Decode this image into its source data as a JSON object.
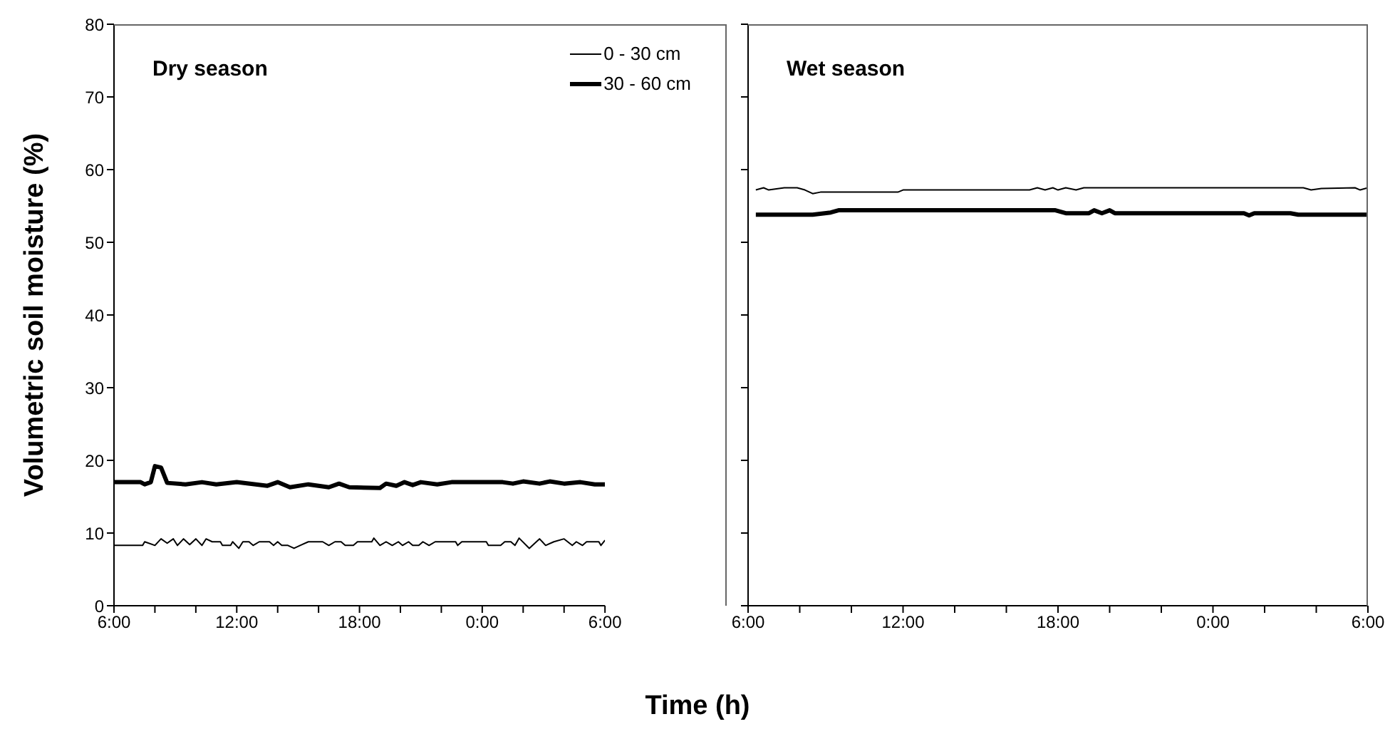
{
  "chart_data": [
    {
      "type": "line",
      "title": "Dry season",
      "ylabel": "Volumetric soil moisture (%)",
      "xlabel": "Time (h)",
      "xlim": [
        "2000-01-01T06:00",
        "2000-01-02T06:00"
      ],
      "xticks": [
        {
          "value": "2000-01-01T06:00",
          "label": "6:00"
        },
        {
          "value": "2000-01-01T08:00",
          "label": null
        },
        {
          "value": "2000-01-01T10:00",
          "label": null
        },
        {
          "value": "2000-01-01T12:00",
          "label": "12:00"
        },
        {
          "value": "2000-01-01T14:00",
          "label": null
        },
        {
          "value": "2000-01-01T16:00",
          "label": null
        },
        {
          "value": "2000-01-01T18:00",
          "label": "18:00"
        },
        {
          "value": "2000-01-01T20:00",
          "label": null
        },
        {
          "value": "2000-01-01T22:00",
          "label": null
        },
        {
          "value": "2000-01-02T00:00",
          "label": "0:00"
        },
        {
          "value": "2000-01-02T02:00",
          "label": null
        },
        {
          "value": "2000-01-02T04:00",
          "label": null
        },
        {
          "value": "2000-01-02T06:00",
          "label": "6:00"
        }
      ],
      "ylim": [
        0,
        80
      ],
      "yticks": [
        0,
        10,
        20,
        30,
        40,
        50,
        60,
        70,
        80
      ],
      "grid": false,
      "legend": "top right",
      "marker": "none",
      "line_style": "solid",
      "series": [
        {
          "name": "0 - 30 cm",
          "color": "#000000",
          "x": [
            "2000-01-01T06:00",
            "2000-01-01T07:24",
            "2000-01-01T07:30",
            "2000-01-01T08:00",
            "2000-01-01T08:18",
            "2000-01-01T08:36",
            "2000-01-01T08:54",
            "2000-01-01T09:06",
            "2000-01-01T09:24",
            "2000-01-01T09:42",
            "2000-01-01T10:00",
            "2000-01-01T10:18",
            "2000-01-01T10:30",
            "2000-01-01T10:48",
            "2000-01-01T11:12",
            "2000-01-01T11:18",
            "2000-01-01T11:42",
            "2000-01-01T11:48",
            "2000-01-01T12:06",
            "2000-01-01T12:18",
            "2000-01-01T12:36",
            "2000-01-01T12:48",
            "2000-01-01T13:06",
            "2000-01-01T13:36",
            "2000-01-01T13:48",
            "2000-01-01T14:00",
            "2000-01-01T14:12",
            "2000-01-01T14:30",
            "2000-01-01T14:48",
            "2000-01-01T15:06",
            "2000-01-01T15:30",
            "2000-01-01T16:12",
            "2000-01-01T16:30",
            "2000-01-01T16:48",
            "2000-01-01T17:06",
            "2000-01-01T17:18",
            "2000-01-01T17:42",
            "2000-01-01T17:54",
            "2000-01-01T18:36",
            "2000-01-01T18:42",
            "2000-01-01T19:00",
            "2000-01-01T19:18",
            "2000-01-01T19:36",
            "2000-01-01T19:54",
            "2000-01-01T20:06",
            "2000-01-01T20:24",
            "2000-01-01T20:36",
            "2000-01-01T20:54",
            "2000-01-01T21:06",
            "2000-01-01T21:24",
            "2000-01-01T21:42",
            "2000-01-01T22:42",
            "2000-01-01T22:48",
            "2000-01-01T23:00",
            "2000-01-02T00:12",
            "2000-01-02T00:18",
            "2000-01-02T00:54",
            "2000-01-02T01:06",
            "2000-01-02T01:24",
            "2000-01-02T01:36",
            "2000-01-02T01:48",
            "2000-01-02T02:18",
            "2000-01-02T02:48",
            "2000-01-02T03:06",
            "2000-01-02T03:30",
            "2000-01-02T04:00",
            "2000-01-02T04:24",
            "2000-01-02T04:36",
            "2000-01-02T04:54",
            "2000-01-02T05:06",
            "2000-01-02T05:42",
            "2000-01-02T05:48",
            "2000-01-02T06:00"
          ],
          "values": [
            8.3,
            8.3,
            8.8,
            8.3,
            9.2,
            8.6,
            9.2,
            8.3,
            9.2,
            8.4,
            9.2,
            8.3,
            9.2,
            8.8,
            8.8,
            8.3,
            8.3,
            8.8,
            7.9,
            8.8,
            8.8,
            8.3,
            8.8,
            8.8,
            8.3,
            8.8,
            8.3,
            8.3,
            7.9,
            8.3,
            8.8,
            8.8,
            8.3,
            8.8,
            8.8,
            8.3,
            8.3,
            8.8,
            8.8,
            9.3,
            8.3,
            8.8,
            8.3,
            8.8,
            8.3,
            8.8,
            8.3,
            8.3,
            8.8,
            8.3,
            8.8,
            8.8,
            8.3,
            8.8,
            8.8,
            8.3,
            8.3,
            8.8,
            8.8,
            8.3,
            9.3,
            7.9,
            9.2,
            8.3,
            8.8,
            9.2,
            8.3,
            8.8,
            8.3,
            8.8,
            8.8,
            8.3,
            9.0
          ]
        },
        {
          "name": "30 - 60 cm",
          "color": "#000000",
          "x": [
            "2000-01-01T06:00",
            "2000-01-01T07:18",
            "2000-01-01T07:30",
            "2000-01-01T07:48",
            "2000-01-01T08:00",
            "2000-01-01T08:18",
            "2000-01-01T08:36",
            "2000-01-01T09:30",
            "2000-01-01T10:18",
            "2000-01-01T11:00",
            "2000-01-01T12:00",
            "2000-01-01T13:30",
            "2000-01-01T14:00",
            "2000-01-01T14:36",
            "2000-01-01T15:30",
            "2000-01-01T16:30",
            "2000-01-01T17:00",
            "2000-01-01T17:30",
            "2000-01-01T19:00",
            "2000-01-01T19:18",
            "2000-01-01T19:48",
            "2000-01-01T20:12",
            "2000-01-01T20:36",
            "2000-01-01T21:00",
            "2000-01-01T21:48",
            "2000-01-01T22:30",
            "2000-01-02T01:00",
            "2000-01-02T01:30",
            "2000-01-02T02:00",
            "2000-01-02T02:48",
            "2000-01-02T03:18",
            "2000-01-02T04:00",
            "2000-01-02T04:48",
            "2000-01-02T05:30",
            "2000-01-02T06:00"
          ],
          "values": [
            17.0,
            17.0,
            16.7,
            17.0,
            19.2,
            19.0,
            16.9,
            16.7,
            17.0,
            16.7,
            17.0,
            16.5,
            17.0,
            16.3,
            16.7,
            16.3,
            16.8,
            16.3,
            16.2,
            16.8,
            16.5,
            17.0,
            16.6,
            17.0,
            16.7,
            17.0,
            17.0,
            16.8,
            17.1,
            16.8,
            17.1,
            16.8,
            17.0,
            16.7,
            16.7
          ]
        }
      ]
    },
    {
      "type": "line",
      "title": "Wet season",
      "xlim": [
        "2000-01-01T06:00",
        "2000-01-02T06:00"
      ],
      "xticks": [
        {
          "value": "2000-01-01T06:00",
          "label": "6:00"
        },
        {
          "value": "2000-01-01T08:00",
          "label": null
        },
        {
          "value": "2000-01-01T10:00",
          "label": null
        },
        {
          "value": "2000-01-01T12:00",
          "label": "12:00"
        },
        {
          "value": "2000-01-01T14:00",
          "label": null
        },
        {
          "value": "2000-01-01T16:00",
          "label": null
        },
        {
          "value": "2000-01-01T18:00",
          "label": "18:00"
        },
        {
          "value": "2000-01-01T20:00",
          "label": null
        },
        {
          "value": "2000-01-01T22:00",
          "label": null
        },
        {
          "value": "2000-01-02T00:00",
          "label": "0:00"
        },
        {
          "value": "2000-01-02T02:00",
          "label": null
        },
        {
          "value": "2000-01-02T04:00",
          "label": null
        },
        {
          "value": "2000-01-02T06:00",
          "label": "6:00"
        }
      ],
      "ylim": [
        0,
        80
      ],
      "yticks": [
        0,
        10,
        20,
        30,
        40,
        50,
        60,
        70,
        80
      ],
      "tick_labels": "x",
      "grid": false,
      "marker": "none",
      "line_style": "solid",
      "series": [
        {
          "color": "#000000",
          "x": [
            "2000-01-01T06:18",
            "2000-01-01T06:36",
            "2000-01-01T06:48",
            "2000-01-01T07:24",
            "2000-01-01T07:54",
            "2000-01-01T08:12",
            "2000-01-01T08:30",
            "2000-01-01T08:48",
            "2000-01-01T11:48",
            "2000-01-01T12:00",
            "2000-01-01T16:54",
            "2000-01-01T17:12",
            "2000-01-01T17:30",
            "2000-01-01T17:48",
            "2000-01-01T18:00",
            "2000-01-01T18:18",
            "2000-01-01T18:42",
            "2000-01-01T19:00",
            "2000-01-02T03:30",
            "2000-01-02T03:48",
            "2000-01-02T04:12",
            "2000-01-02T05:30",
            "2000-01-02T05:42",
            "2000-01-02T06:00"
          ],
          "values": [
            57.2,
            57.5,
            57.2,
            57.5,
            57.5,
            57.2,
            56.7,
            56.9,
            56.9,
            57.2,
            57.2,
            57.5,
            57.2,
            57.5,
            57.2,
            57.5,
            57.2,
            57.5,
            57.5,
            57.2,
            57.4,
            57.5,
            57.2,
            57.5
          ]
        },
        {
          "color": "#000000",
          "x": [
            "2000-01-01T06:18",
            "2000-01-01T08:30",
            "2000-01-01T09:12",
            "2000-01-01T09:30",
            "2000-01-01T17:54",
            "2000-01-01T18:18",
            "2000-01-01T19:12",
            "2000-01-01T19:24",
            "2000-01-01T19:42",
            "2000-01-01T20:00",
            "2000-01-01T20:12",
            "2000-01-02T01:12",
            "2000-01-02T01:24",
            "2000-01-02T01:36",
            "2000-01-02T03:00",
            "2000-01-02T03:18",
            "2000-01-02T06:00"
          ],
          "values": [
            53.8,
            53.8,
            54.1,
            54.4,
            54.4,
            54.0,
            54.0,
            54.4,
            54.0,
            54.4,
            54.0,
            54.0,
            53.7,
            54.0,
            54.0,
            53.8,
            53.8
          ]
        }
      ]
    }
  ]
}
